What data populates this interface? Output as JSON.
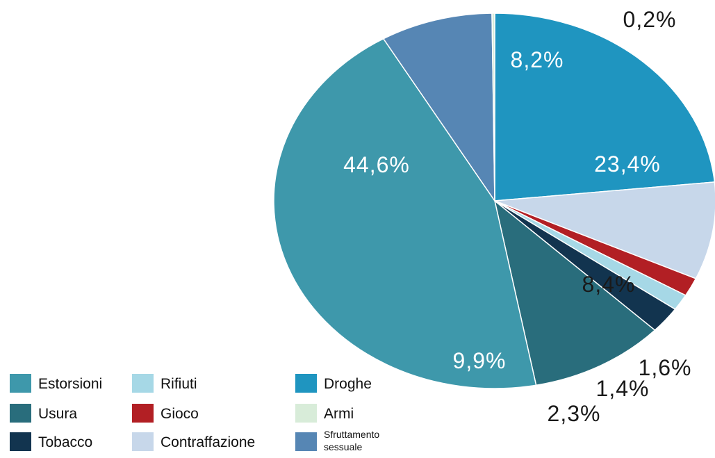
{
  "chart_data": {
    "type": "pie",
    "title": "",
    "start_angle_deg": 0,
    "direction": "clockwise",
    "slices": [
      {
        "key": "droghe",
        "name": "Droghe",
        "value": 23.4,
        "label": "23,4%",
        "color": "#1f95c0"
      },
      {
        "key": "contraffazione",
        "name": "Contraffazione",
        "value": 8.4,
        "label": "8,4%",
        "color": "#c7d7ea"
      },
      {
        "key": "gioco",
        "name": "Gioco",
        "value": 1.6,
        "label": "1,6%",
        "color": "#b21f24"
      },
      {
        "key": "rifiuti",
        "name": "Rifiuti",
        "value": 1.4,
        "label": "1,4%",
        "color": "#a6d8e6"
      },
      {
        "key": "tobacco",
        "name": "Tobacco",
        "value": 2.3,
        "label": "2,3%",
        "color": "#12344f"
      },
      {
        "key": "usura",
        "name": "Usura",
        "value": 9.9,
        "label": "9,9%",
        "color": "#296d7c"
      },
      {
        "key": "estorsioni",
        "name": "Estorsioni",
        "value": 44.6,
        "label": "44,6%",
        "color": "#3e98ab"
      },
      {
        "key": "sfruttamento",
        "name": "Sfruttamento sessuale",
        "value": 8.2,
        "label": "8,2%",
        "color": "#5686b4"
      },
      {
        "key": "armi",
        "name": "Armi",
        "value": 0.2,
        "label": "0,2%",
        "color": "#d8ecd9"
      }
    ],
    "legend": {
      "position": "bottom-left",
      "entries": [
        {
          "key": "estorsioni",
          "lines": [
            "Estorsioni"
          ]
        },
        {
          "key": "usura",
          "lines": [
            "Usura"
          ]
        },
        {
          "key": "tobacco",
          "lines": [
            "Tobacco"
          ]
        },
        {
          "key": "rifiuti",
          "lines": [
            "Rifiuti"
          ]
        },
        {
          "key": "gioco",
          "lines": [
            "Gioco"
          ]
        },
        {
          "key": "contraffazione",
          "lines": [
            "Contraffazione"
          ]
        },
        {
          "key": "droghe",
          "lines": [
            "Droghe"
          ]
        },
        {
          "key": "armi",
          "lines": [
            "Armi"
          ]
        },
        {
          "key": "sfruttamento",
          "lines": [
            "Sfruttamento",
            "sessuale"
          ]
        }
      ]
    }
  }
}
